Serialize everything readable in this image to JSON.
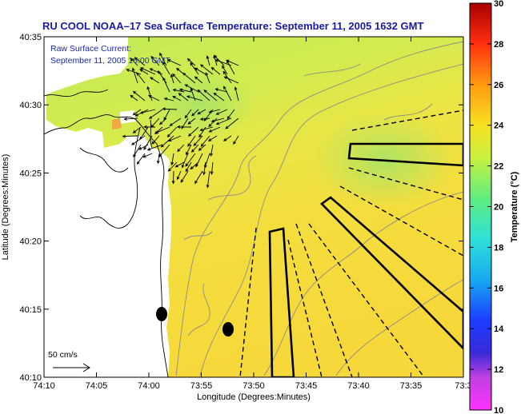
{
  "title": "RU COOL  NOAA–17  Sea Surface Temperature:  September 11, 2005 1632 GMT",
  "annotation": {
    "line1": "Raw Surface Current:",
    "line2": "September 11, 2005 16:00 GMT"
  },
  "scale_label": "50 cm/s",
  "x_axis": {
    "label": "Longitude (Degrees:Minutes)",
    "ticks": [
      "74:10",
      "74:05",
      "74:00",
      "73:55",
      "73:50",
      "73:45",
      "73:40",
      "73:35",
      "73:3"
    ]
  },
  "y_axis": {
    "label": "Latitude (Degrees:Minutes)",
    "ticks": [
      "40:35",
      "40:30",
      "40:25",
      "40:20",
      "40:15",
      "40:10"
    ]
  },
  "colorbar": {
    "label": "Temperature (°C)",
    "ticks": [
      "30",
      "28",
      "26",
      "24",
      "22",
      "20",
      "18",
      "16",
      "14",
      "12",
      "10"
    ],
    "min": 10,
    "max": 30
  },
  "colors": {
    "land": "#ffffff",
    "sst_warm_band": "#f0e040",
    "sst_cool_band": "#b8e85a",
    "title": "#1a1aa6",
    "vectors": "#000000"
  }
}
